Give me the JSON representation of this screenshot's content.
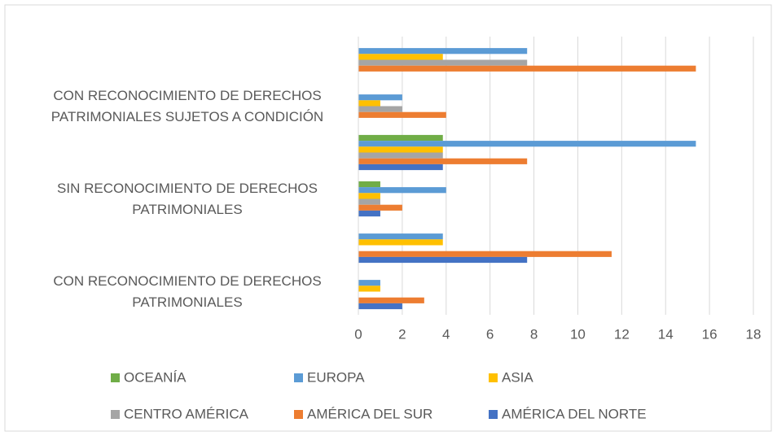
{
  "chart_data": {
    "type": "bar",
    "orientation": "horizontal",
    "categories": [
      "CON RECONOCIMIENTO DE DERECHOS PATRIMONIALES",
      null,
      "SIN RECONOCIMIENTO DE DERECHOS PATRIMONIALES",
      null,
      "CON RECONOCIMIENTO DE DERECHOS PATRIMONIALES SUJETOS A CONDICIÓN",
      null
    ],
    "series": [
      {
        "name": "OCEANÍA",
        "color": "#70ad47",
        "values": [
          0,
          0,
          1,
          3.85,
          0,
          0
        ]
      },
      {
        "name": "EUROPA",
        "color": "#5b9bd5",
        "values": [
          1,
          3.85,
          4,
          15.38,
          2,
          7.69
        ]
      },
      {
        "name": "ASIA",
        "color": "#ffc000",
        "values": [
          1,
          3.85,
          1,
          3.85,
          1,
          3.85
        ]
      },
      {
        "name": "CENTRO AMÉRICA",
        "color": "#a5a5a5",
        "values": [
          0,
          0,
          1,
          3.85,
          2,
          7.69
        ]
      },
      {
        "name": "AMÉRICA DEL SUR",
        "color": "#ed7d31",
        "values": [
          3,
          11.54,
          2,
          7.69,
          4,
          15.38
        ]
      },
      {
        "name": "AMÉRICA DEL NORTE",
        "color": "#4472c4",
        "values": [
          2,
          7.69,
          1,
          3.85,
          0,
          0
        ]
      }
    ],
    "xlim": [
      0,
      18
    ],
    "xticks": [
      0,
      2,
      4,
      6,
      8,
      10,
      12,
      14,
      16,
      18
    ],
    "grid": true,
    "legend": "bottom"
  }
}
